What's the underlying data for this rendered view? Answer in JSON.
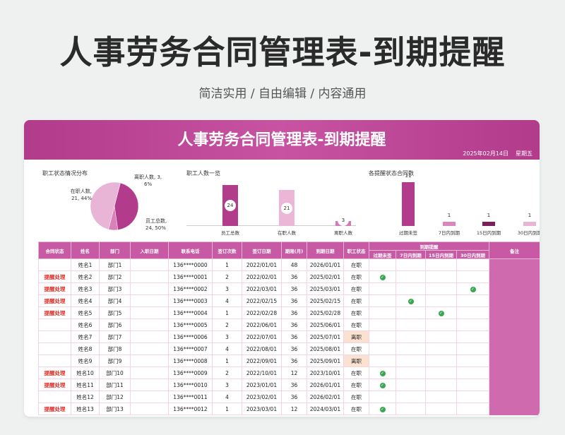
{
  "hero": {
    "title": "人事劳务合同管理表-到期提醒",
    "subtitle": "简洁实用 / 自由编辑 / 内容通用"
  },
  "sheet": {
    "title": "人事劳务合同管理表-到期提醒",
    "date": "2025年02月14日",
    "weekday": "星期五"
  },
  "pie": {
    "title": "职工状态情况分布",
    "in_label_1": "在职人数,",
    "in_label_2": "21, 44%",
    "out_label_1": "离职人数, 3,",
    "out_label_2": "6%",
    "total_label_1": "员工总数,",
    "total_label_2": "24, 50%",
    "values": [
      21,
      3,
      24
    ],
    "colors": [
      "#b23b8b",
      "#d980b8",
      "#e8b5d6"
    ]
  },
  "staff_chart": {
    "title": "职工人数一览",
    "categories": [
      "员工总数",
      "在职人数",
      "离职人数"
    ],
    "values": [
      "24",
      "21",
      "3"
    ],
    "colors": [
      "#b23b8b",
      "#ecb7d7",
      "#d678b6"
    ]
  },
  "contract_chart": {
    "title": "各提醒状态合同数",
    "categories": [
      "过期未签",
      "7日内到期",
      "15日内到期",
      "30日内到期"
    ],
    "values": [
      "11",
      "1",
      "1",
      "1"
    ],
    "colors": [
      "#b23b8b",
      "#d986bb",
      "#7a1e5c",
      "#e8b5d6"
    ]
  },
  "table": {
    "headers": {
      "status": "合同状态",
      "name": "姓名",
      "dept": "部门",
      "entry": "入职日期",
      "phone": "联系电话",
      "count": "签订次数",
      "sign": "签订日期",
      "term": "期限(月)",
      "due": "到期日期",
      "emp": "职工状态",
      "remind": "到期提醒",
      "r1": "过期未签",
      "r2": "7日内到期",
      "r3": "15日内到期",
      "r4": "30日内到期",
      "note": "备注"
    },
    "rows": [
      {
        "status": "",
        "name": "姓名1",
        "dept": "部门1",
        "phone": "136****0000",
        "count": "1",
        "sign": "2022/01/01",
        "term": "48",
        "due": "2026/01/01",
        "emp": "在职",
        "chk": ""
      },
      {
        "status": "提醒处理",
        "name": "姓名2",
        "dept": "部门2",
        "phone": "136****0001",
        "count": "2",
        "sign": "2022/02/01",
        "term": "36",
        "due": "2025/02/01",
        "emp": "在职",
        "chk": "r1"
      },
      {
        "status": "提醒处理",
        "name": "姓名3",
        "dept": "部门3",
        "phone": "136****0002",
        "count": "3",
        "sign": "2022/03/01",
        "term": "36",
        "due": "2025/03/01",
        "emp": "在职",
        "chk": "r4"
      },
      {
        "status": "提醒处理",
        "name": "姓名4",
        "dept": "部门4",
        "phone": "136****0003",
        "count": "4",
        "sign": "2022/02/15",
        "term": "36",
        "due": "2025/02/15",
        "emp": "在职",
        "chk": "r2"
      },
      {
        "status": "提醒处理",
        "name": "姓名5",
        "dept": "部门5",
        "phone": "136****0004",
        "count": "1",
        "sign": "2022/02/28",
        "term": "36",
        "due": "2025/02/28",
        "emp": "在职",
        "chk": "r3"
      },
      {
        "status": "",
        "name": "姓名6",
        "dept": "部门6",
        "phone": "136****0005",
        "count": "2",
        "sign": "2022/06/01",
        "term": "36",
        "due": "2025/06/01",
        "emp": "在职",
        "chk": ""
      },
      {
        "status": "",
        "name": "姓名7",
        "dept": "部门7",
        "phone": "136****0006",
        "count": "3",
        "sign": "2022/07/01",
        "term": "36",
        "due": "2025/07/01",
        "emp": "离职",
        "chk": ""
      },
      {
        "status": "",
        "name": "姓名8",
        "dept": "部门8",
        "phone": "136****0007",
        "count": "4",
        "sign": "2022/08/01",
        "term": "36",
        "due": "2025/08/01",
        "emp": "在职",
        "chk": ""
      },
      {
        "status": "",
        "name": "姓名9",
        "dept": "部门9",
        "phone": "136****0008",
        "count": "1",
        "sign": "2022/09/01",
        "term": "36",
        "due": "2025/09/01",
        "emp": "离职",
        "chk": ""
      },
      {
        "status": "提醒处理",
        "name": "姓名10",
        "dept": "部门10",
        "phone": "136****0009",
        "count": "2",
        "sign": "2022/10/01",
        "term": "12",
        "due": "2023/10/01",
        "emp": "在职",
        "chk": "r1"
      },
      {
        "status": "提醒处理",
        "name": "姓名11",
        "dept": "部门11",
        "phone": "136****0010",
        "count": "3",
        "sign": "2023/01/01",
        "term": "36",
        "due": "2026/01/01",
        "emp": "在职",
        "chk": "r1"
      },
      {
        "status": "",
        "name": "姓名12",
        "dept": "部门12",
        "phone": "136****0011",
        "count": "4",
        "sign": "2023/02/01",
        "term": "36",
        "due": "2026/02/01",
        "emp": "在职",
        "chk": ""
      },
      {
        "status": "提醒处理",
        "name": "姓名13",
        "dept": "部门13",
        "phone": "136****0012",
        "count": "1",
        "sign": "2023/03/01",
        "term": "12",
        "due": "2024/03/01",
        "emp": "在职",
        "chk": "r1"
      }
    ]
  }
}
